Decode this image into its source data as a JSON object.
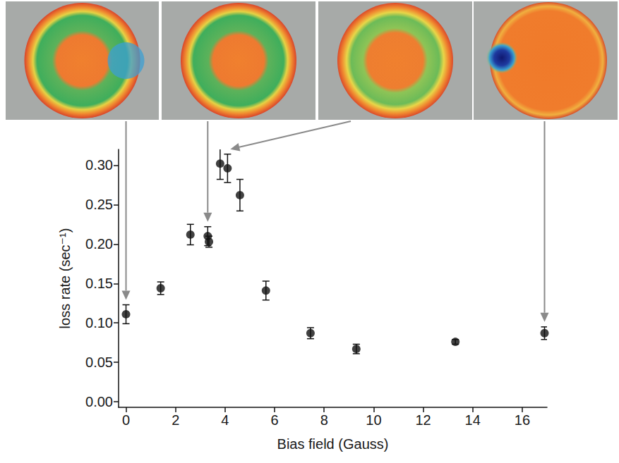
{
  "chart_data": {
    "type": "scatter",
    "x_label": "Bias field (Gauss)",
    "y_label": "loss rate (sec⁻¹)",
    "x": [
      0,
      1.4,
      2.6,
      3.3,
      3.35,
      3.8,
      4.1,
      4.6,
      5.65,
      7.45,
      9.3,
      13.3,
      16.9
    ],
    "values": [
      0.111,
      0.144,
      0.212,
      0.21,
      0.203,
      0.302,
      0.296,
      0.262,
      0.141,
      0.087,
      0.067,
      0.076,
      0.087
    ],
    "errors": [
      0.012,
      0.008,
      0.013,
      0.012,
      0.007,
      0.02,
      0.018,
      0.02,
      0.012,
      0.007,
      0.006,
      0.003,
      0.008
    ],
    "color": "#111111",
    "marker": "circle",
    "xlim": [
      -0.3,
      17
    ],
    "ylim": [
      -0.007,
      0.32
    ],
    "xticks": [
      0,
      2,
      4,
      6,
      8,
      10,
      12,
      14,
      16
    ],
    "yticks": [
      {
        "value": 0,
        "label": "0.00"
      },
      {
        "value": 0.05,
        "label": "0.05"
      },
      {
        "value": 0.1,
        "label": "0.10"
      },
      {
        "value": 0.15,
        "label": "0.15"
      },
      {
        "value": 0.2,
        "label": "0.20"
      },
      {
        "value": 0.25,
        "label": "0.25"
      },
      {
        "value": 0.3,
        "label": "0.30"
      }
    ],
    "grid": false
  }
}
